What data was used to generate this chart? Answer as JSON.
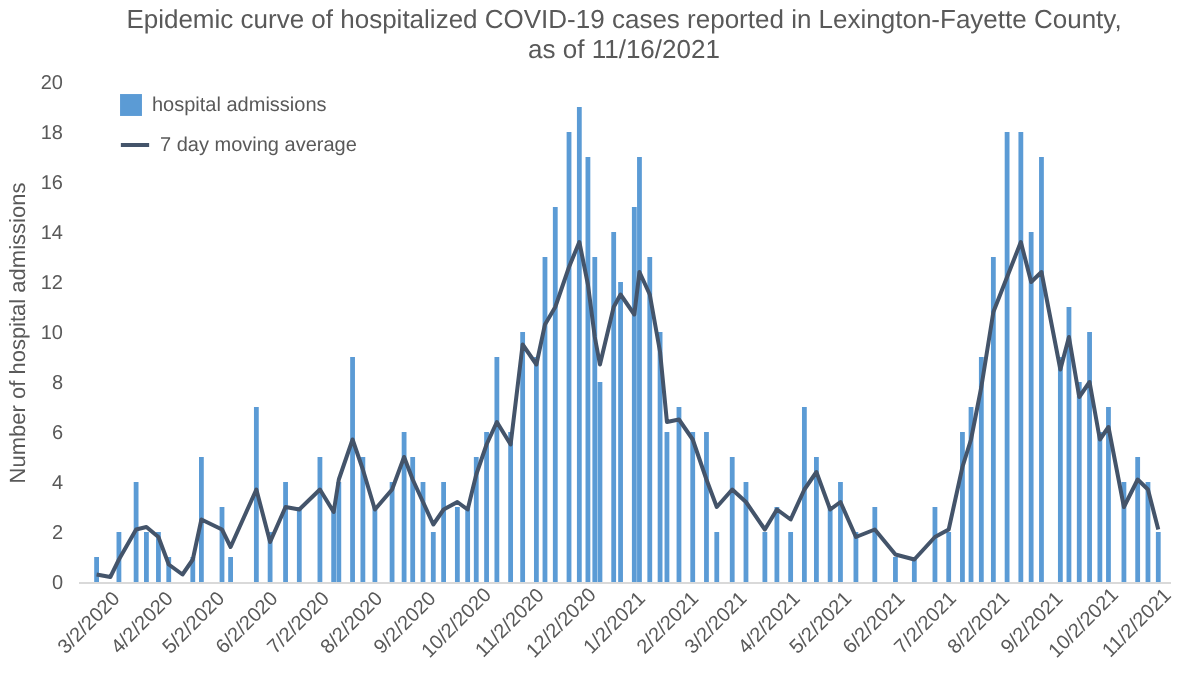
{
  "chart_data": {
    "type": "bar",
    "title": "Epidemic curve of hospitalized COVID-19 cases reported in Lexington-Fayette County, as of 11/16/2021",
    "ylabel": "Number of hospital admissions",
    "x": [
      "2020-03-07",
      "2020-03-15",
      "2020-03-20",
      "2020-03-30",
      "2020-04-05",
      "2020-04-12",
      "2020-04-18",
      "2020-04-26",
      "2020-05-02",
      "2020-05-07",
      "2020-05-19",
      "2020-05-24",
      "2020-06-08",
      "2020-06-16",
      "2020-06-25",
      "2020-07-03",
      "2020-07-15",
      "2020-07-23",
      "2020-07-26",
      "2020-08-03",
      "2020-08-09",
      "2020-08-16",
      "2020-08-26",
      "2020-09-02",
      "2020-09-07",
      "2020-09-13",
      "2020-09-19",
      "2020-09-25",
      "2020-10-03",
      "2020-10-09",
      "2020-10-14",
      "2020-10-20",
      "2020-10-26",
      "2020-11-03",
      "2020-11-10",
      "2020-11-18",
      "2020-11-23",
      "2020-11-29",
      "2020-12-07",
      "2020-12-13",
      "2020-12-18",
      "2020-12-22",
      "2020-12-25",
      "2021-01-02",
      "2021-01-06",
      "2021-01-14",
      "2021-01-17",
      "2021-01-23",
      "2021-01-29",
      "2021-02-02",
      "2021-02-09",
      "2021-02-17",
      "2021-02-25",
      "2021-03-03",
      "2021-03-12",
      "2021-03-20",
      "2021-03-31",
      "2021-04-07",
      "2021-04-15",
      "2021-04-23",
      "2021-04-30",
      "2021-05-08",
      "2021-05-14",
      "2021-05-23",
      "2021-06-03",
      "2021-06-15",
      "2021-06-26",
      "2021-07-08",
      "2021-07-16",
      "2021-07-24",
      "2021-07-29",
      "2021-08-04",
      "2021-08-11",
      "2021-08-19",
      "2021-08-27",
      "2021-09-02",
      "2021-09-08",
      "2021-09-19",
      "2021-09-24",
      "2021-09-30",
      "2021-10-06",
      "2021-10-12",
      "2021-10-17",
      "2021-10-26",
      "2021-11-03",
      "2021-11-09",
      "2021-11-15"
    ],
    "series": [
      {
        "name": "hospital admissions",
        "color": "#5b9bd5",
        "values": [
          1,
          0,
          2,
          4,
          2,
          2,
          1,
          0,
          1,
          5,
          3,
          1,
          7,
          2,
          4,
          3,
          5,
          3,
          4,
          9,
          5,
          3,
          4,
          6,
          5,
          4,
          2,
          4,
          3,
          3,
          5,
          6,
          9,
          6,
          10,
          9,
          13,
          15,
          18,
          19,
          17,
          13,
          8,
          14,
          12,
          15,
          17,
          13,
          10,
          6,
          7,
          6,
          6,
          2,
          5,
          4,
          2,
          3,
          2,
          7,
          5,
          3,
          4,
          2,
          3,
          1,
          1,
          3,
          2,
          6,
          7,
          9,
          13,
          18,
          18,
          14,
          17,
          9,
          11,
          8,
          10,
          6,
          7,
          4,
          5,
          4,
          2
        ]
      },
      {
        "name": "7 day moving average",
        "type": "line",
        "color": "#44546a",
        "values": [
          0.3,
          0.2,
          0.9,
          2.1,
          2.2,
          1.8,
          0.7,
          0.3,
          0.9,
          2.5,
          2.1,
          1.4,
          3.7,
          1.6,
          3.0,
          2.9,
          3.7,
          2.8,
          4.1,
          5.7,
          4.5,
          2.9,
          3.7,
          5.0,
          4.1,
          3.2,
          2.3,
          2.9,
          3.2,
          2.9,
          4.3,
          5.5,
          6.4,
          5.5,
          9.5,
          8.7,
          10.3,
          11.0,
          12.6,
          13.6,
          11.9,
          9.8,
          8.7,
          11.0,
          11.5,
          10.7,
          12.4,
          11.5,
          9.2,
          6.4,
          6.5,
          5.7,
          4.1,
          3.0,
          3.7,
          3.2,
          2.1,
          2.9,
          2.5,
          3.7,
          4.4,
          2.9,
          3.2,
          1.8,
          2.1,
          1.1,
          0.9,
          1.8,
          2.1,
          4.6,
          5.7,
          7.8,
          10.8,
          12.2,
          13.6,
          12.0,
          12.4,
          8.5,
          9.8,
          7.4,
          8.0,
          5.7,
          6.2,
          3.0,
          4.1,
          3.7,
          2.1
        ]
      }
    ],
    "xlim": [
      "2020-03-02",
      "2021-11-16"
    ],
    "xticks": [
      {
        "value": "2020-03-02",
        "label": "3/2/2020"
      },
      {
        "value": "2020-04-02",
        "label": "4/2/2020"
      },
      {
        "value": "2020-05-02",
        "label": "5/2/2020"
      },
      {
        "value": "2020-06-02",
        "label": "6/2/2020"
      },
      {
        "value": "2020-07-02",
        "label": "7/2/2020"
      },
      {
        "value": "2020-08-02",
        "label": "8/2/2020"
      },
      {
        "value": "2020-09-02",
        "label": "9/2/2020"
      },
      {
        "value": "2020-10-02",
        "label": "10/2/2020"
      },
      {
        "value": "2020-11-02",
        "label": "11/2/2020"
      },
      {
        "value": "2020-12-02",
        "label": "12/2/2020"
      },
      {
        "value": "2021-01-02",
        "label": "1/2/2021"
      },
      {
        "value": "2021-02-02",
        "label": "2/2/2021"
      },
      {
        "value": "2021-03-02",
        "label": "3/2/2021"
      },
      {
        "value": "2021-04-02",
        "label": "4/2/2021"
      },
      {
        "value": "2021-05-02",
        "label": "5/2/2021"
      },
      {
        "value": "2021-06-02",
        "label": "6/2/2021"
      },
      {
        "value": "2021-07-02",
        "label": "7/2/2021"
      },
      {
        "value": "2021-08-02",
        "label": "8/2/2021"
      },
      {
        "value": "2021-09-02",
        "label": "9/2/2021"
      },
      {
        "value": "2021-10-02",
        "label": "10/2/2021"
      },
      {
        "value": "2021-11-02",
        "label": "11/2/2021"
      }
    ],
    "ylim": [
      0,
      20
    ],
    "yticks": [
      0,
      2,
      4,
      6,
      8,
      10,
      12,
      14,
      16,
      18,
      20
    ],
    "grid": false,
    "legend": "top left"
  }
}
